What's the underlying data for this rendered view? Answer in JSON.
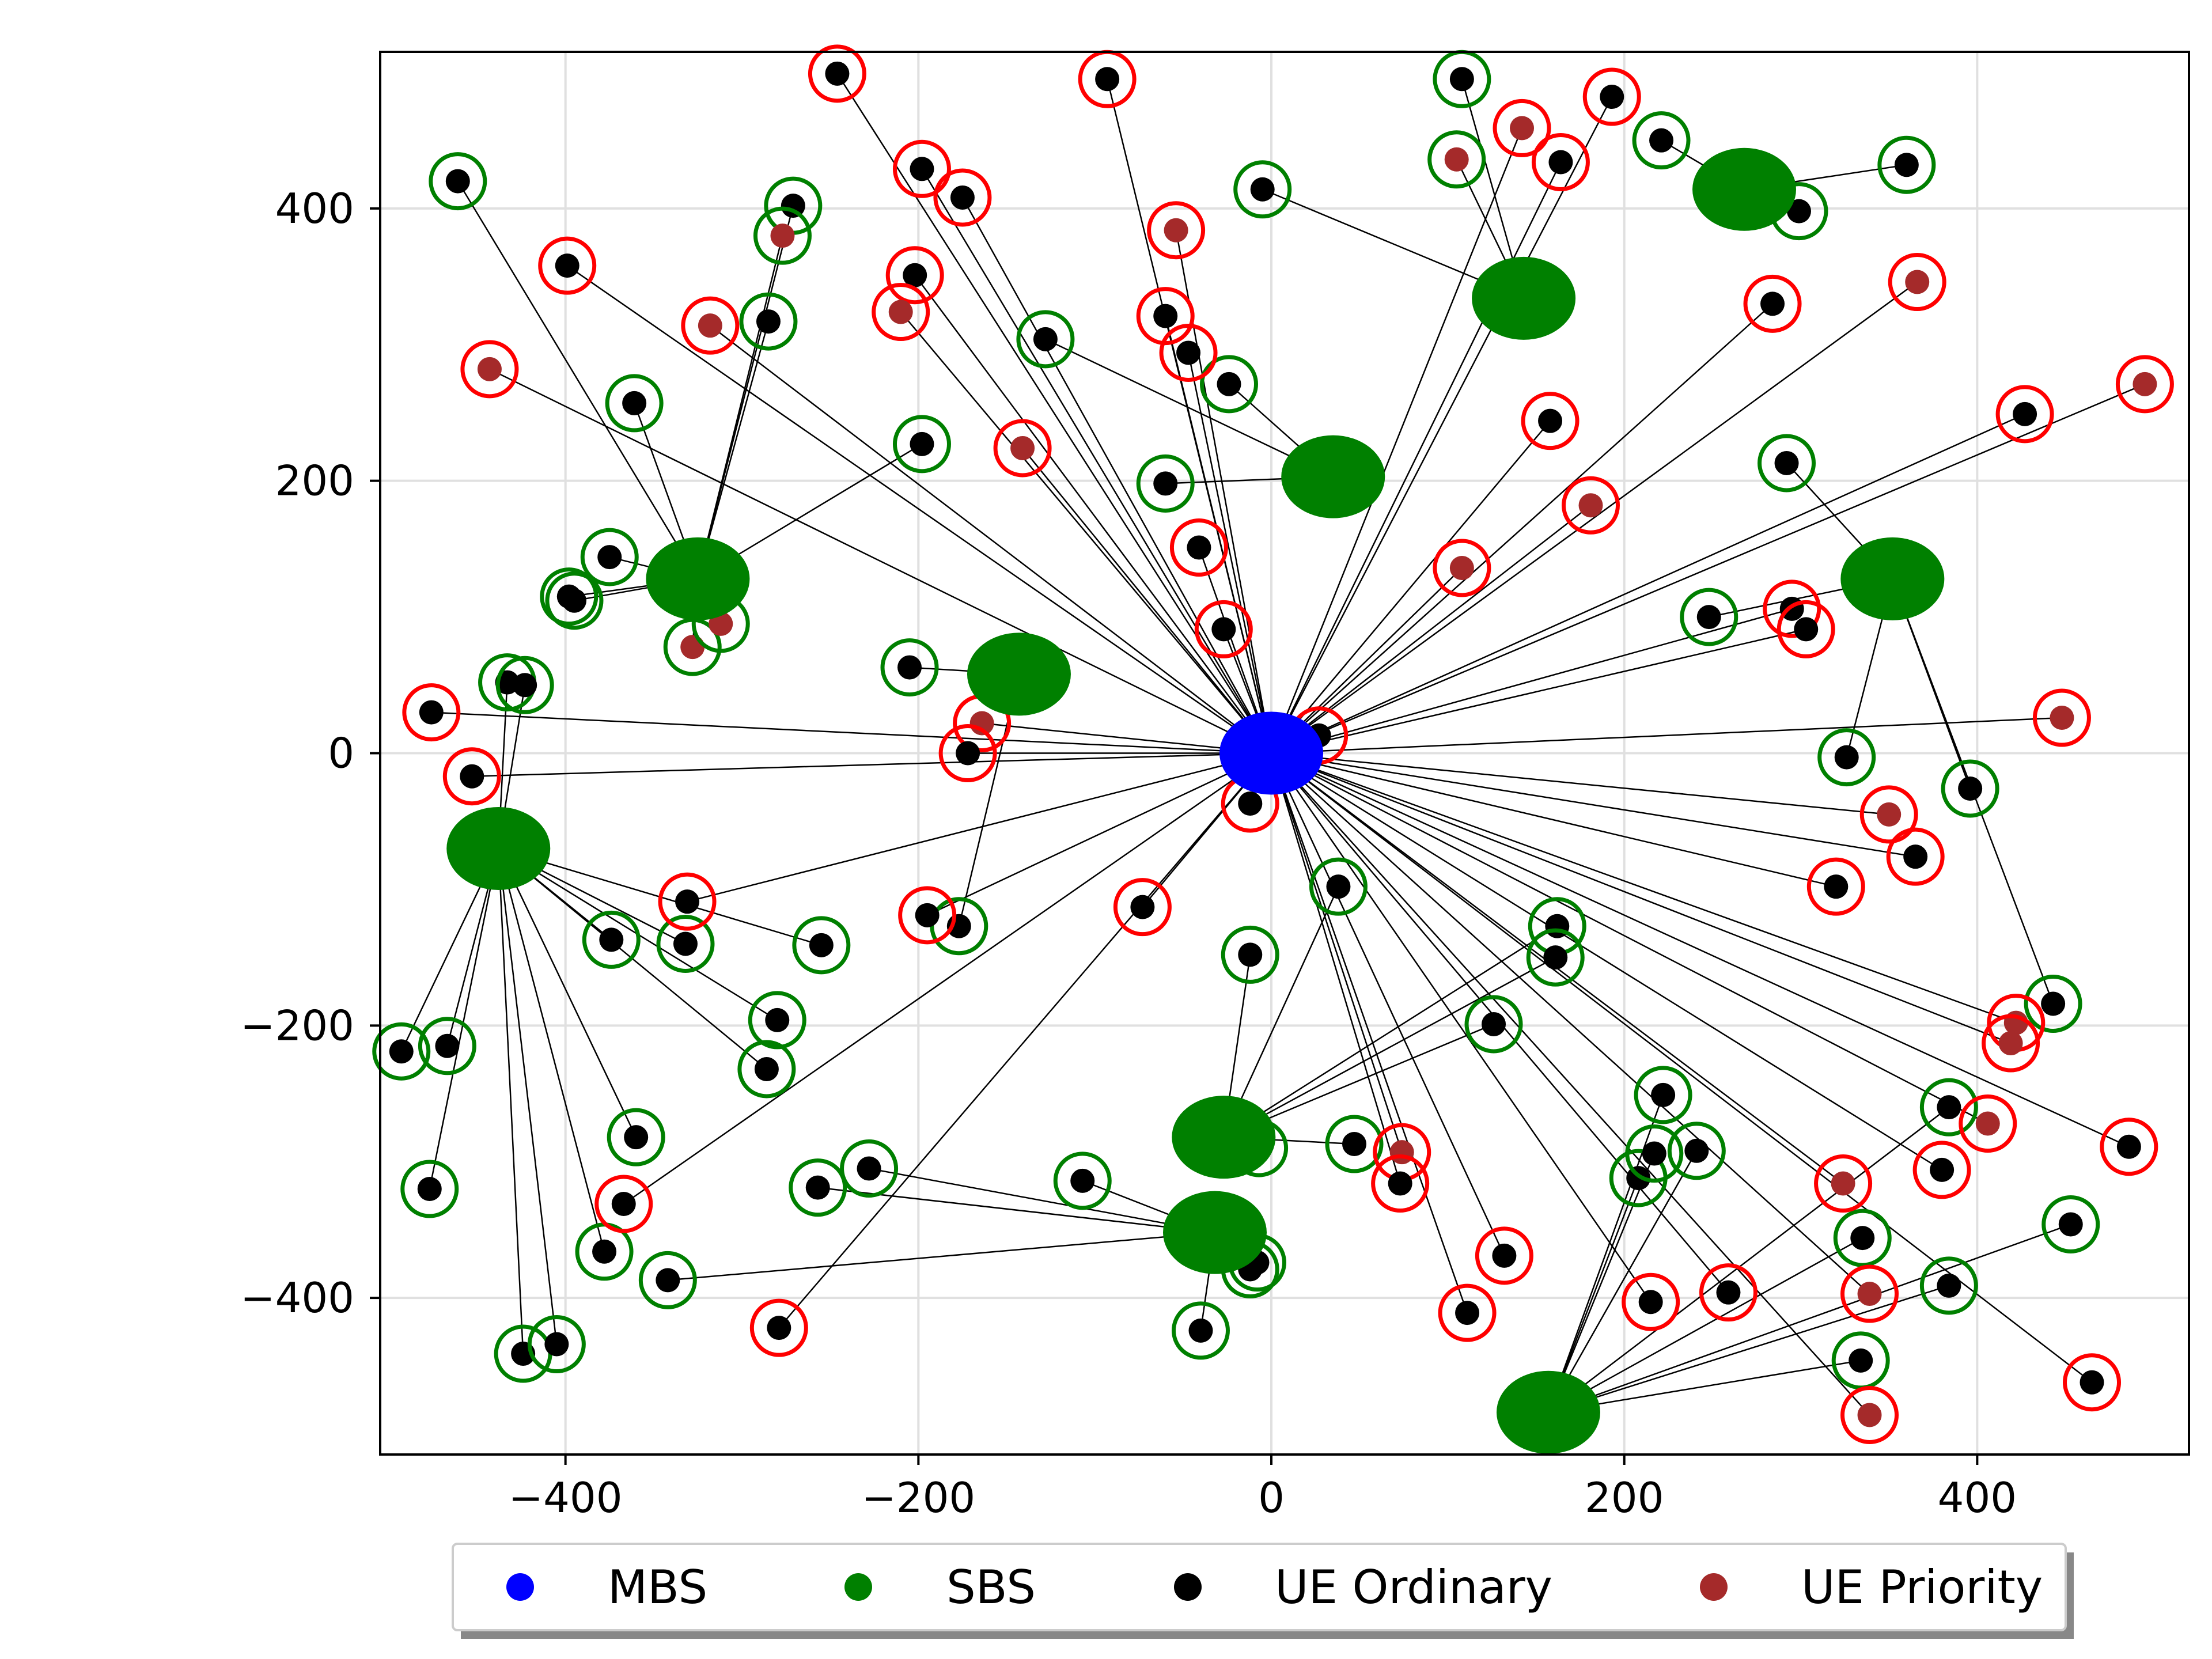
{
  "chart_data": {
    "type": "scatter",
    "title": "",
    "xlabel": "",
    "ylabel": "",
    "xlim": [
      -505,
      520
    ],
    "ylim": [
      -515,
      515
    ],
    "xticks": [
      -400,
      -200,
      0,
      200,
      400
    ],
    "yticks": [
      -400,
      -200,
      0,
      200,
      400
    ],
    "xtick_labels": [
      "−400",
      "−200",
      "0",
      "200",
      "400"
    ],
    "ytick_labels": [
      "−400",
      "−200",
      "0",
      "200",
      "400"
    ],
    "grid": true,
    "legend_position": "bottom-center-outside",
    "colors": {
      "mbs": "#0000ff",
      "sbs": "#008000",
      "ue_ordinary": "#000000",
      "ue_priority": "#a52a2a",
      "ring_sbs_served": "#008000",
      "ring_mbs_served": "#ff0000",
      "link": "#000000",
      "grid": "#e0e0e0"
    },
    "legend": [
      {
        "label": "MBS",
        "series": "mbs"
      },
      {
        "label": "SBS",
        "series": "sbs"
      },
      {
        "label": "UE Ordinary",
        "series": "ue_ordinary"
      },
      {
        "label": "UE Priority",
        "series": "ue_priority"
      }
    ],
    "mbs": {
      "x": 0,
      "y": 0
    },
    "sbs": [
      {
        "x": -438,
        "y": -70
      },
      {
        "x": -325,
        "y": 128
      },
      {
        "x": -143,
        "y": 58
      },
      {
        "x": 35,
        "y": 203
      },
      {
        "x": 143,
        "y": 334
      },
      {
        "x": 268,
        "y": 414
      },
      {
        "x": 352,
        "y": 128
      },
      {
        "x": -27,
        "y": -282
      },
      {
        "x": -32,
        "y": -352
      },
      {
        "x": 157,
        "y": -484
      }
    ],
    "ues": [
      {
        "x": -461,
        "y": 420,
        "p": 0,
        "sbs": 1
      },
      {
        "x": -361,
        "y": 257,
        "p": 0,
        "sbs": 1
      },
      {
        "x": -328,
        "y": 78,
        "p": 1,
        "sbs": 1
      },
      {
        "x": -312,
        "y": 95,
        "p": 1,
        "sbs": 1
      },
      {
        "x": -375,
        "y": 144,
        "p": 0,
        "sbs": 1
      },
      {
        "x": -398,
        "y": 115,
        "p": 0,
        "sbs": 1
      },
      {
        "x": -395,
        "y": 112,
        "p": 0,
        "sbs": 1
      },
      {
        "x": -285,
        "y": 317,
        "p": 0,
        "sbs": 1
      },
      {
        "x": -271,
        "y": 402,
        "p": 0,
        "sbs": 1
      },
      {
        "x": -277,
        "y": 380,
        "p": 1,
        "sbs": 1
      },
      {
        "x": -198,
        "y": 227,
        "p": 0,
        "sbs": 1
      },
      {
        "x": -433,
        "y": 52,
        "p": 0,
        "sbs": 0
      },
      {
        "x": -423,
        "y": 50,
        "p": 0,
        "sbs": 0
      },
      {
        "x": -493,
        "y": -219,
        "p": 0,
        "sbs": 0
      },
      {
        "x": -467,
        "y": -215,
        "p": 0,
        "sbs": 0
      },
      {
        "x": -477,
        "y": -320,
        "p": 0,
        "sbs": 0
      },
      {
        "x": -424,
        "y": -441,
        "p": 0,
        "sbs": 0
      },
      {
        "x": -405,
        "y": -434,
        "p": 0,
        "sbs": 0
      },
      {
        "x": -378,
        "y": -366,
        "p": 0,
        "sbs": 0
      },
      {
        "x": -360,
        "y": -282,
        "p": 0,
        "sbs": 0
      },
      {
        "x": -374,
        "y": -137,
        "p": 0,
        "sbs": 0
      },
      {
        "x": -332,
        "y": -140,
        "p": 0,
        "sbs": 0
      },
      {
        "x": -255,
        "y": -141,
        "p": 0,
        "sbs": 0
      },
      {
        "x": -280,
        "y": -196,
        "p": 0,
        "sbs": 0
      },
      {
        "x": -286,
        "y": -232,
        "p": 0,
        "sbs": 0
      },
      {
        "x": -205,
        "y": 63,
        "p": 0,
        "sbs": 2
      },
      {
        "x": -177,
        "y": -127,
        "p": 0,
        "sbs": 2
      },
      {
        "x": -128,
        "y": 304,
        "p": 0,
        "sbs": 3
      },
      {
        "x": -60,
        "y": 198,
        "p": 0,
        "sbs": 3
      },
      {
        "x": -24,
        "y": 271,
        "p": 0,
        "sbs": 3
      },
      {
        "x": -5,
        "y": 414,
        "p": 0,
        "sbs": 4
      },
      {
        "x": 105,
        "y": 436,
        "p": 1,
        "sbs": 4
      },
      {
        "x": 108,
        "y": 495,
        "p": 0,
        "sbs": 4
      },
      {
        "x": 360,
        "y": 432,
        "p": 0,
        "sbs": 5
      },
      {
        "x": 299,
        "y": 398,
        "p": 0,
        "sbs": 5
      },
      {
        "x": 292,
        "y": 213,
        "p": 0,
        "sbs": 6
      },
      {
        "x": 248,
        "y": 100,
        "p": 0,
        "sbs": 6
      },
      {
        "x": 326,
        "y": -3,
        "p": 0,
        "sbs": 6
      },
      {
        "x": 396,
        "y": -26,
        "p": 0,
        "sbs": 6
      },
      {
        "x": 443,
        "y": -184,
        "p": 0,
        "sbs": 6
      },
      {
        "x": -12,
        "y": -148,
        "p": 0,
        "sbs": 7
      },
      {
        "x": 38,
        "y": -98,
        "p": 0,
        "sbs": 7
      },
      {
        "x": 162,
        "y": -127,
        "p": 0,
        "sbs": 7
      },
      {
        "x": 161,
        "y": -150,
        "p": 0,
        "sbs": 7
      },
      {
        "x": 126,
        "y": -199,
        "p": 0,
        "sbs": 7
      },
      {
        "x": -7,
        "y": -290,
        "p": 0,
        "sbs": 7
      },
      {
        "x": 47,
        "y": -287,
        "p": 0,
        "sbs": 7
      },
      {
        "x": -342,
        "y": -387,
        "p": 0,
        "sbs": 8
      },
      {
        "x": -257,
        "y": -319,
        "p": 0,
        "sbs": 8
      },
      {
        "x": -228,
        "y": -305,
        "p": 0,
        "sbs": 8
      },
      {
        "x": -107,
        "y": -314,
        "p": 0,
        "sbs": 8
      },
      {
        "x": -40,
        "y": -424,
        "p": 0,
        "sbs": 8
      },
      {
        "x": -12,
        "y": -379,
        "p": 0,
        "sbs": 8
      },
      {
        "x": -8,
        "y": -374,
        "p": 0,
        "sbs": 8
      },
      {
        "x": 208,
        "y": -312,
        "p": 0,
        "sbs": 9
      },
      {
        "x": 217,
        "y": -294,
        "p": 0,
        "sbs": 9
      },
      {
        "x": 222,
        "y": -251,
        "p": 0,
        "sbs": 9
      },
      {
        "x": 241,
        "y": -292,
        "p": 0,
        "sbs": 9
      },
      {
        "x": 334,
        "y": -446,
        "p": 0,
        "sbs": 9
      },
      {
        "x": 335,
        "y": -356,
        "p": 0,
        "sbs": 9
      },
      {
        "x": 384,
        "y": -391,
        "p": 0,
        "sbs": 9
      },
      {
        "x": 453,
        "y": -346,
        "p": 0,
        "sbs": 9
      },
      {
        "x": 384,
        "y": -260,
        "p": 0,
        "sbs": 9
      },
      {
        "x": 221,
        "y": 450,
        "p": 0,
        "sbs": 5
      },
      {
        "x": -246,
        "y": 499,
        "p": 0,
        "sbs": -1
      },
      {
        "x": -93,
        "y": 495,
        "p": 0,
        "sbs": -1
      },
      {
        "x": -198,
        "y": 429,
        "p": 0,
        "sbs": -1
      },
      {
        "x": -175,
        "y": 408,
        "p": 0,
        "sbs": -1
      },
      {
        "x": -54,
        "y": 384,
        "p": 1,
        "sbs": -1
      },
      {
        "x": -60,
        "y": 321,
        "p": 0,
        "sbs": -1
      },
      {
        "x": -47,
        "y": 294,
        "p": 0,
        "sbs": -1
      },
      {
        "x": -202,
        "y": 351,
        "p": 0,
        "sbs": -1
      },
      {
        "x": -210,
        "y": 324,
        "p": 1,
        "sbs": -1
      },
      {
        "x": -318,
        "y": 314,
        "p": 1,
        "sbs": -1
      },
      {
        "x": -399,
        "y": 358,
        "p": 0,
        "sbs": -1
      },
      {
        "x": -443,
        "y": 282,
        "p": 1,
        "sbs": -1
      },
      {
        "x": -141,
        "y": 224,
        "p": 1,
        "sbs": -1
      },
      {
        "x": -41,
        "y": 151,
        "p": 0,
        "sbs": -1
      },
      {
        "x": -27,
        "y": 91,
        "p": 0,
        "sbs": -1
      },
      {
        "x": -164,
        "y": 22,
        "p": 1,
        "sbs": -1
      },
      {
        "x": -172,
        "y": 0,
        "p": 0,
        "sbs": -1
      },
      {
        "x": -476,
        "y": 30,
        "p": 0,
        "sbs": -1
      },
      {
        "x": -453,
        "y": -17,
        "p": 0,
        "sbs": -1
      },
      {
        "x": -331,
        "y": -109,
        "p": 0,
        "sbs": -1
      },
      {
        "x": -195,
        "y": -119,
        "p": 0,
        "sbs": -1
      },
      {
        "x": -73,
        "y": -113,
        "p": 0,
        "sbs": -1
      },
      {
        "x": -12,
        "y": -37,
        "p": 0,
        "sbs": -1
      },
      {
        "x": 27,
        "y": 13,
        "p": 0,
        "sbs": -1
      },
      {
        "x": -367,
        "y": -331,
        "p": 0,
        "sbs": -1
      },
      {
        "x": -279,
        "y": -422,
        "p": 0,
        "sbs": -1
      },
      {
        "x": 108,
        "y": 136,
        "p": 1,
        "sbs": -1
      },
      {
        "x": 158,
        "y": 244,
        "p": 0,
        "sbs": -1
      },
      {
        "x": 181,
        "y": 182,
        "p": 1,
        "sbs": -1
      },
      {
        "x": 142,
        "y": 459,
        "p": 1,
        "sbs": -1
      },
      {
        "x": 164,
        "y": 434,
        "p": 0,
        "sbs": -1
      },
      {
        "x": 193,
        "y": 482,
        "p": 0,
        "sbs": -1
      },
      {
        "x": 284,
        "y": 330,
        "p": 0,
        "sbs": -1
      },
      {
        "x": 366,
        "y": 346,
        "p": 1,
        "sbs": -1
      },
      {
        "x": 427,
        "y": 249,
        "p": 0,
        "sbs": -1
      },
      {
        "x": 495,
        "y": 271,
        "p": 1,
        "sbs": -1
      },
      {
        "x": 295,
        "y": 106,
        "p": 0,
        "sbs": -1
      },
      {
        "x": 303,
        "y": 91,
        "p": 0,
        "sbs": -1
      },
      {
        "x": 448,
        "y": 26,
        "p": 1,
        "sbs": -1
      },
      {
        "x": 350,
        "y": -45,
        "p": 1,
        "sbs": -1
      },
      {
        "x": 365,
        "y": -76,
        "p": 0,
        "sbs": -1
      },
      {
        "x": 320,
        "y": -98,
        "p": 0,
        "sbs": -1
      },
      {
        "x": 422,
        "y": -198,
        "p": 1,
        "sbs": -1
      },
      {
        "x": 419,
        "y": -213,
        "p": 1,
        "sbs": -1
      },
      {
        "x": 406,
        "y": -272,
        "p": 1,
        "sbs": -1
      },
      {
        "x": 486,
        "y": -289,
        "p": 0,
        "sbs": -1
      },
      {
        "x": 465,
        "y": -462,
        "p": 0,
        "sbs": -1
      },
      {
        "x": 339,
        "y": -486,
        "p": 1,
        "sbs": -1
      },
      {
        "x": 339,
        "y": -397,
        "p": 1,
        "sbs": -1
      },
      {
        "x": 380,
        "y": -306,
        "p": 0,
        "sbs": -1
      },
      {
        "x": 324,
        "y": -316,
        "p": 1,
        "sbs": -1
      },
      {
        "x": 259,
        "y": -396,
        "p": 0,
        "sbs": -1
      },
      {
        "x": 215,
        "y": -403,
        "p": 0,
        "sbs": -1
      },
      {
        "x": 132,
        "y": -369,
        "p": 0,
        "sbs": -1
      },
      {
        "x": 111,
        "y": -411,
        "p": 0,
        "sbs": -1
      },
      {
        "x": 74,
        "y": -293,
        "p": 1,
        "sbs": -1
      },
      {
        "x": 73,
        "y": -316,
        "p": 0,
        "sbs": -1
      }
    ]
  }
}
